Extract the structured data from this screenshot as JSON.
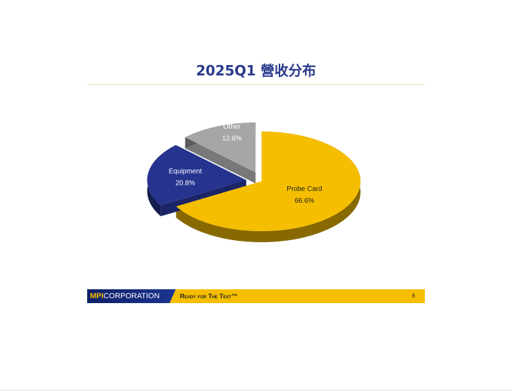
{
  "title": "2025Q1 營收分布",
  "chart_data": {
    "type": "pie",
    "style": "3d-exploded",
    "title": "",
    "slices": [
      {
        "label": "Probe Card",
        "value": 66.6,
        "value_label": "66.6%",
        "color": "#f6be00",
        "label_color": "#222222"
      },
      {
        "label": "Equipment",
        "value": 20.8,
        "value_label": "20.8%",
        "color": "#26338f",
        "label_color": "#ffffff"
      },
      {
        "label": "Other",
        "value": 12.6,
        "value_label": "12.6%",
        "color": "#a6a6a6",
        "label_color": "#ffffff"
      }
    ]
  },
  "footer": {
    "logo_mpi": "MPI",
    "logo_corp": "CORPORATION",
    "tagline": "Ready for The Test™",
    "page_number": "6"
  }
}
